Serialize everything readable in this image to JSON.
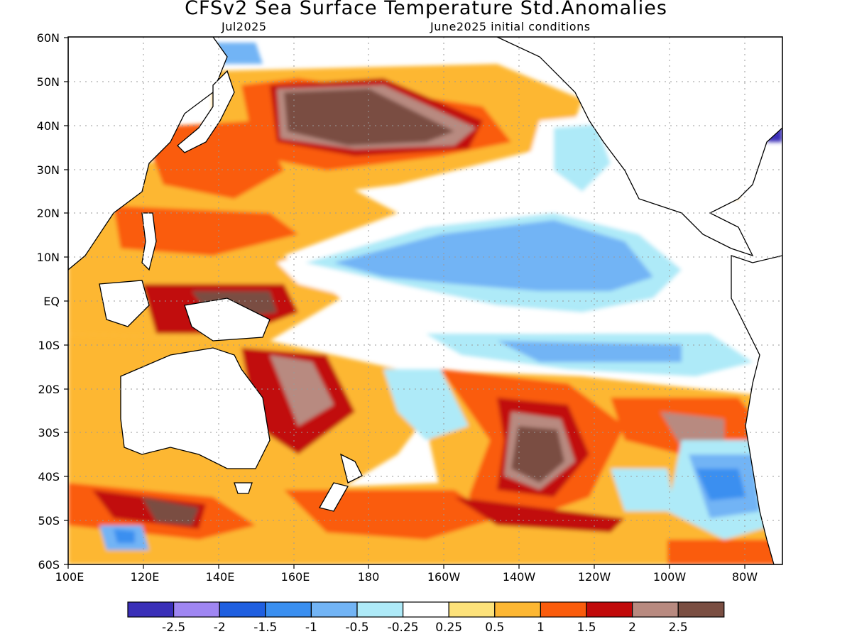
{
  "title": "CFSv2 Sea Surface Temperature Std.Anomalies",
  "subtitle_left": "Jul2025",
  "subtitle_right": "June2025 initial conditions",
  "map": {
    "lat_ticks": [
      "60N",
      "50N",
      "40N",
      "30N",
      "20N",
      "10N",
      "EQ",
      "10S",
      "20S",
      "30S",
      "40S",
      "50S",
      "60S"
    ],
    "lon_ticks": [
      "100E",
      "120E",
      "140E",
      "160E",
      "180",
      "160W",
      "140W",
      "120W",
      "100W",
      "80W"
    ],
    "lat_range": [
      -60,
      60
    ],
    "lon_range": [
      100,
      290
    ],
    "gridlines": "dotted"
  },
  "colorbar": {
    "colors": [
      "#3a2fb8",
      "#9f86f2",
      "#1f5fe0",
      "#3a8ff0",
      "#72b4f5",
      "#aeeaf8",
      "#ffffff",
      "#fde27a",
      "#fdb733",
      "#fa5c0c",
      "#c10a0a",
      "#b88a80",
      "#7a4e42"
    ],
    "labels": [
      "-2.5",
      "-2",
      "-1.5",
      "-1",
      "-0.5",
      "-0.25",
      "0.25",
      "0.5",
      "1",
      "1.5",
      "2",
      "2.5"
    ]
  }
}
